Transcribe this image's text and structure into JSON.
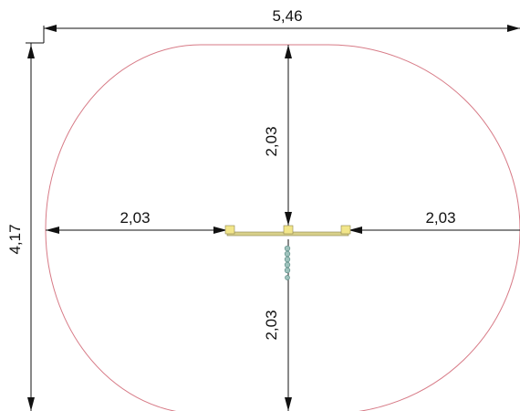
{
  "drawing": {
    "title": "",
    "colors": {
      "clearance_outline": "#d77a86",
      "dimension_lines": "#111111",
      "frame_posts": "#f2e68a",
      "crossbar": "#d8d08a",
      "hanging_chain": "#7fa7a2"
    },
    "dimensions": {
      "overall_width": "5,46",
      "overall_height": "4,17",
      "top_clearance": "2,03",
      "left_clearance": "2,03",
      "right_clearance": "2,03",
      "bottom_clearance": "2,03"
    }
  }
}
